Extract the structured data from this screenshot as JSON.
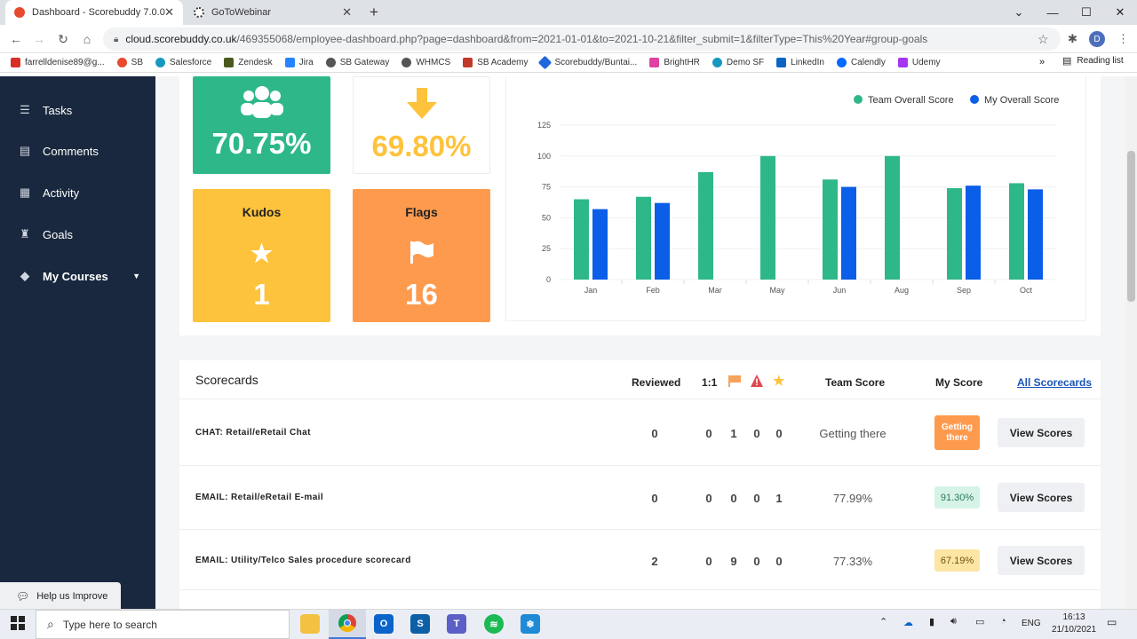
{
  "browser": {
    "tabs": [
      {
        "label": "Dashboard - Scorebuddy 7.0.0"
      },
      {
        "label": "GoToWebinar"
      }
    ],
    "url_host": "cloud.scorebuddy.co.uk",
    "url_path": "/469355068/employee-dashboard.php?page=dashboard&from=2021-01-01&to=2021-10-21&filter_submit=1&filterType=This%20Year#group-goals",
    "profile_initial": "D",
    "bookmarks": [
      "farrelldenise89@g...",
      "SB",
      "Salesforce",
      "Zendesk",
      "Jira",
      "SB Gateway",
      "WHMCS",
      "SB Academy",
      "Scorebuddy/Buntai...",
      "BrightHR",
      "Demo SF",
      "LinkedIn",
      "Calendly",
      "Udemy"
    ],
    "reading_list": "Reading list"
  },
  "sidebar": {
    "items": [
      {
        "label": "Tasks",
        "icon": "tasks-icon"
      },
      {
        "label": "Comments",
        "icon": "comment-icon"
      },
      {
        "label": "Activity",
        "icon": "clipboard-icon"
      },
      {
        "label": "Goals",
        "icon": "trophy-icon"
      },
      {
        "label": "My Courses",
        "icon": "graduation-cap-icon"
      }
    ],
    "help_label": "Help us Improve"
  },
  "tiles": {
    "team_score": "70.75%",
    "my_score": "69.80%",
    "kudos_title": "Kudos",
    "kudos_value": "1",
    "flags_title": "Flags",
    "flags_value": "16"
  },
  "colors": {
    "team": "#2eb88a",
    "mine": "#0a5ee8",
    "sidebar": "#19283e",
    "kudos": "#fdc33c",
    "flags": "#fe9a4e"
  },
  "chart_data": {
    "type": "bar",
    "categories": [
      "Jan",
      "Feb",
      "Mar",
      "May",
      "Jun",
      "Aug",
      "Sep",
      "Oct"
    ],
    "series": [
      {
        "name": "Team Overall Score",
        "values": [
          65,
          67,
          87,
          100,
          81,
          100,
          74,
          78
        ]
      },
      {
        "name": "My Overall Score",
        "values": [
          57,
          62,
          null,
          null,
          75,
          null,
          76,
          73
        ]
      }
    ],
    "yticks": [
      0,
      25,
      50,
      75,
      100,
      125
    ],
    "ylim": [
      0,
      125
    ],
    "legend": "top-right",
    "grid": true
  },
  "scorecards": {
    "title": "Scorecards",
    "headers": {
      "reviewed": "Reviewed",
      "one_to_one": "1:1",
      "team": "Team Score",
      "my": "My Score",
      "all_link": "All Scorecards"
    },
    "rows": [
      {
        "name": "CHAT: Retail/eRetail Chat",
        "reviewed": "0",
        "one": "0",
        "flags": "1",
        "alerts": "0",
        "stars": "0",
        "team": "Getting there",
        "my": "Getting there",
        "my_bg": "#fe9a4e",
        "my_fg": "#ffffff"
      },
      {
        "name": "EMAIL: Retail/eRetail E-mail",
        "reviewed": "0",
        "one": "0",
        "flags": "0",
        "alerts": "0",
        "stars": "1",
        "team": "77.99%",
        "my": "91.30%",
        "my_bg": "#d5f3e6",
        "my_fg": "#2c7a57"
      },
      {
        "name": "EMAIL: Utility/Telco Sales procedure scorecard",
        "reviewed": "2",
        "one": "0",
        "flags": "9",
        "alerts": "0",
        "stars": "0",
        "team": "77.33%",
        "my": "67.19%",
        "my_bg": "#fde5a3",
        "my_fg": "#6b5410"
      }
    ],
    "view_label": "View Scores"
  },
  "taskbar": {
    "search_placeholder": "Type here to search",
    "lang": "ENG",
    "time": "16:13",
    "date": "21/10/2021"
  }
}
